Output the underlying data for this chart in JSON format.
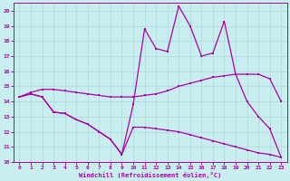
{
  "xlabel": "Windchill (Refroidissement éolien,°C)",
  "bg_color": "#c8eef0",
  "grid_color": "#b0dde0",
  "line_color": "#aa00aa",
  "xlim": [
    -0.5,
    23.5
  ],
  "ylim": [
    10,
    20.5
  ],
  "xticks": [
    0,
    1,
    2,
    3,
    4,
    5,
    6,
    7,
    8,
    9,
    10,
    11,
    12,
    13,
    14,
    15,
    16,
    17,
    18,
    19,
    20,
    21,
    22,
    23
  ],
  "yticks": [
    10,
    11,
    12,
    13,
    14,
    15,
    16,
    17,
    18,
    19,
    20
  ],
  "line_flat_x": [
    0,
    1,
    2,
    3,
    4,
    5,
    6,
    7,
    8,
    9,
    10,
    11,
    12,
    13,
    14,
    15,
    16,
    17,
    18,
    19,
    20,
    21,
    22,
    23
  ],
  "line_flat_y": [
    14.3,
    14.6,
    14.8,
    14.8,
    14.7,
    14.6,
    14.5,
    14.4,
    14.3,
    14.3,
    14.3,
    14.4,
    14.5,
    14.7,
    15.0,
    15.2,
    15.4,
    15.6,
    15.7,
    15.8,
    15.8,
    15.8,
    15.5,
    14.0
  ],
  "line_diag_x": [
    0,
    1,
    2,
    3,
    4,
    5,
    6,
    7,
    8,
    9,
    10,
    11,
    12,
    13,
    14,
    15,
    16,
    17,
    18,
    19,
    20,
    21,
    22,
    23
  ],
  "line_diag_y": [
    14.3,
    14.5,
    14.3,
    13.3,
    13.2,
    12.8,
    12.5,
    12.0,
    11.5,
    10.5,
    12.3,
    12.3,
    12.2,
    12.1,
    12.0,
    11.8,
    11.6,
    11.4,
    11.2,
    11.0,
    10.8,
    10.6,
    10.5,
    10.3
  ],
  "line_peak_x": [
    0,
    1,
    2,
    3,
    4,
    5,
    6,
    7,
    8,
    9,
    10,
    11,
    12,
    13,
    14,
    15,
    16,
    17,
    18,
    19,
    20,
    21,
    22,
    23
  ],
  "line_peak_y": [
    14.3,
    14.5,
    14.3,
    13.3,
    13.2,
    12.8,
    12.5,
    12.0,
    11.5,
    10.5,
    13.8,
    18.8,
    17.5,
    17.3,
    20.3,
    19.0,
    17.0,
    17.2,
    19.3,
    15.8,
    14.0,
    13.0,
    12.2,
    10.3
  ]
}
